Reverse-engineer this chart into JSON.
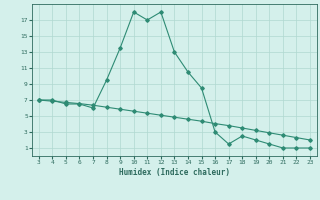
{
  "xlabel": "Humidex (Indice chaleur)",
  "line_color": "#2e8b74",
  "bg_color": "#d4f0eb",
  "grid_color": "#b0d8d0",
  "text_color": "#2e6b5e",
  "xlim": [
    2.5,
    23.5
  ],
  "ylim": [
    0,
    19
  ],
  "xticks": [
    3,
    4,
    5,
    6,
    7,
    8,
    9,
    10,
    11,
    12,
    13,
    14,
    15,
    16,
    17,
    18,
    19,
    20,
    21,
    22,
    23
  ],
  "yticks": [
    1,
    3,
    5,
    7,
    9,
    11,
    13,
    15,
    17
  ],
  "x_main": [
    3,
    4,
    5,
    6,
    7,
    8,
    9,
    10,
    11,
    12,
    13,
    14,
    15,
    16,
    17,
    18,
    19,
    20,
    21,
    22,
    23
  ],
  "y_main": [
    7,
    7,
    6.5,
    6.5,
    6,
    9.5,
    13.5,
    18,
    17,
    18,
    13,
    10.5,
    8.5,
    3,
    1.5,
    2.5,
    2,
    1.5,
    1,
    1,
    1
  ],
  "x_base": [
    3,
    4,
    5,
    6,
    7,
    8,
    9,
    10,
    11,
    12,
    13,
    14,
    15,
    16,
    17,
    18,
    19,
    20,
    21,
    22,
    23
  ],
  "y_base": [
    7.0,
    6.85,
    6.7,
    6.55,
    6.35,
    6.1,
    5.85,
    5.6,
    5.35,
    5.1,
    4.85,
    4.6,
    4.35,
    4.05,
    3.8,
    3.5,
    3.2,
    2.9,
    2.6,
    2.3,
    2.0
  ]
}
